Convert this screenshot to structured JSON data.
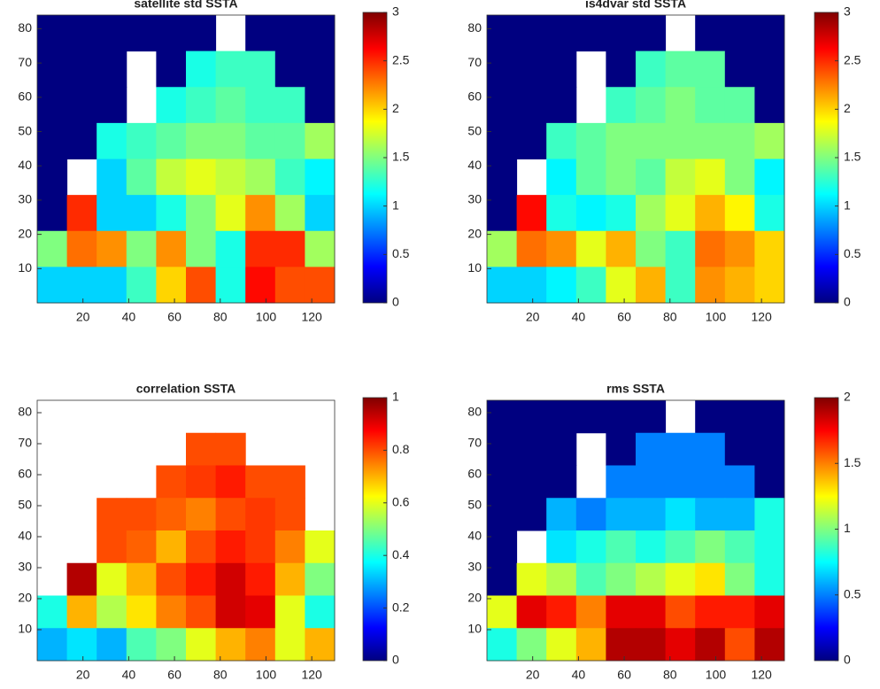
{
  "chart_data": [
    {
      "type": "heatmap",
      "title": "satellite std SSTA",
      "colormap": "jet",
      "x": [
        6.5,
        19.5,
        32.5,
        45.5,
        58.5,
        71.5,
        84.5,
        97.5,
        110.5,
        123.5
      ],
      "y": [
        78.75,
        68.25,
        57.75,
        47.25,
        36.75,
        26.25,
        15.75,
        5.25
      ],
      "z": [
        [
          0,
          0,
          0,
          0,
          0,
          0,
          null,
          0,
          0,
          0
        ],
        [
          0,
          0,
          0,
          null,
          0,
          1.2,
          1.3,
          1.3,
          0,
          0
        ],
        [
          0,
          0,
          0,
          null,
          1.2,
          1.3,
          1.4,
          1.3,
          1.3,
          0
        ],
        [
          0,
          0,
          1.2,
          1.3,
          1.4,
          1.5,
          1.5,
          1.4,
          1.4,
          1.6
        ],
        [
          0,
          null,
          1.0,
          1.4,
          1.7,
          1.8,
          1.7,
          1.6,
          1.3,
          1.1
        ],
        [
          0,
          2.5,
          1.0,
          1.0,
          1.2,
          1.5,
          1.8,
          2.2,
          1.6,
          1.0
        ],
        [
          1.5,
          2.3,
          2.2,
          1.5,
          2.2,
          1.5,
          1.2,
          2.5,
          2.5,
          1.6
        ],
        [
          1.0,
          1.0,
          1.0,
          1.3,
          2.0,
          2.4,
          1.2,
          2.6,
          2.4,
          2.4
        ]
      ],
      "xlim": [
        0,
        130
      ],
      "ylim": [
        0,
        84
      ],
      "xticks": [
        20,
        40,
        60,
        80,
        100,
        120
      ],
      "yticks": [
        10,
        20,
        30,
        40,
        50,
        60,
        70,
        80
      ],
      "clim": [
        0,
        3
      ],
      "cticks": [
        0,
        0.5,
        1,
        1.5,
        2,
        2.5,
        3
      ]
    },
    {
      "type": "heatmap",
      "title": "is4dvar std SSTA",
      "colormap": "jet",
      "x": [
        6.5,
        19.5,
        32.5,
        45.5,
        58.5,
        71.5,
        84.5,
        97.5,
        110.5,
        123.5
      ],
      "y": [
        78.75,
        68.25,
        57.75,
        47.25,
        36.75,
        26.25,
        15.75,
        5.25
      ],
      "z": [
        [
          0,
          0,
          0,
          0,
          0,
          0,
          null,
          0,
          0,
          0
        ],
        [
          0,
          0,
          0,
          null,
          0,
          1.3,
          1.4,
          1.4,
          0,
          0
        ],
        [
          0,
          0,
          0,
          null,
          1.3,
          1.4,
          1.5,
          1.4,
          1.4,
          0
        ],
        [
          0,
          0,
          1.3,
          1.4,
          1.5,
          1.5,
          1.5,
          1.5,
          1.5,
          1.6
        ],
        [
          0,
          null,
          1.1,
          1.4,
          1.5,
          1.4,
          1.7,
          1.8,
          1.5,
          1.1
        ],
        [
          0,
          2.6,
          1.2,
          1.1,
          1.2,
          1.6,
          1.8,
          2.1,
          1.9,
          1.2
        ],
        [
          1.6,
          2.3,
          2.2,
          1.8,
          2.1,
          1.5,
          1.3,
          2.3,
          2.2,
          2.0
        ],
        [
          1.0,
          1.0,
          1.1,
          1.3,
          1.8,
          2.1,
          1.3,
          2.2,
          2.1,
          2.0
        ]
      ],
      "xlim": [
        0,
        130
      ],
      "ylim": [
        0,
        84
      ],
      "xticks": [
        20,
        40,
        60,
        80,
        100,
        120
      ],
      "yticks": [
        10,
        20,
        30,
        40,
        50,
        60,
        70,
        80
      ],
      "clim": [
        0,
        3
      ],
      "cticks": [
        0,
        0.5,
        1,
        1.5,
        2,
        2.5,
        3
      ]
    },
    {
      "type": "heatmap",
      "title": "correlation SSTA",
      "colormap": "jet",
      "x": [
        6.5,
        19.5,
        32.5,
        45.5,
        58.5,
        71.5,
        84.5,
        97.5,
        110.5,
        123.5
      ],
      "y": [
        78.75,
        68.25,
        57.75,
        47.25,
        36.75,
        26.25,
        15.75,
        5.25
      ],
      "z": [
        [
          null,
          null,
          null,
          null,
          null,
          null,
          null,
          null,
          null,
          null
        ],
        [
          null,
          null,
          null,
          null,
          null,
          0.8,
          0.8,
          null,
          null,
          null
        ],
        [
          null,
          null,
          null,
          null,
          0.8,
          0.82,
          0.85,
          0.8,
          0.8,
          null
        ],
        [
          null,
          null,
          0.8,
          0.8,
          0.78,
          0.75,
          0.8,
          0.82,
          0.8,
          null
        ],
        [
          null,
          null,
          0.8,
          0.78,
          0.7,
          0.8,
          0.85,
          0.82,
          0.75,
          0.6
        ],
        [
          null,
          0.95,
          0.6,
          0.7,
          0.8,
          0.85,
          0.92,
          0.85,
          0.7,
          0.5
        ],
        [
          0.4,
          0.7,
          0.55,
          0.65,
          0.75,
          0.8,
          0.92,
          0.9,
          0.6,
          0.4
        ],
        [
          0.3,
          0.35,
          0.3,
          0.45,
          0.5,
          0.6,
          0.7,
          0.75,
          0.6,
          0.7
        ]
      ],
      "xlim": [
        0,
        130
      ],
      "ylim": [
        0,
        84
      ],
      "xticks": [
        20,
        40,
        60,
        80,
        100,
        120
      ],
      "yticks": [
        10,
        20,
        30,
        40,
        50,
        60,
        70,
        80
      ],
      "clim": [
        0,
        1
      ],
      "cticks": [
        0,
        0.2,
        0.4,
        0.6,
        0.8,
        1
      ]
    },
    {
      "type": "heatmap",
      "title": "rms SSTA",
      "colormap": "jet",
      "x": [
        6.5,
        19.5,
        32.5,
        45.5,
        58.5,
        71.5,
        84.5,
        97.5,
        110.5,
        123.5
      ],
      "y": [
        78.75,
        68.25,
        57.75,
        47.25,
        36.75,
        26.25,
        15.75,
        5.25
      ],
      "z": [
        [
          0,
          0,
          0,
          0,
          0,
          0,
          null,
          0,
          0,
          0
        ],
        [
          0,
          0,
          0,
          null,
          0,
          0.5,
          0.5,
          0.5,
          0,
          0
        ],
        [
          0,
          0,
          0,
          null,
          0.5,
          0.5,
          0.5,
          0.5,
          0.5,
          0
        ],
        [
          0,
          0,
          0.6,
          0.5,
          0.6,
          0.6,
          0.7,
          0.6,
          0.6,
          0.8
        ],
        [
          0,
          null,
          0.7,
          0.8,
          0.9,
          0.8,
          0.9,
          1.0,
          0.9,
          0.8
        ],
        [
          0,
          1.2,
          1.1,
          0.9,
          1.0,
          1.1,
          1.2,
          1.3,
          1.0,
          0.8
        ],
        [
          1.2,
          1.8,
          1.7,
          1.5,
          1.8,
          1.8,
          1.6,
          1.7,
          1.7,
          1.8
        ],
        [
          0.8,
          1.0,
          1.2,
          1.4,
          1.9,
          1.9,
          1.8,
          1.9,
          1.6,
          1.9
        ]
      ],
      "xlim": [
        0,
        130
      ],
      "ylim": [
        0,
        84
      ],
      "xticks": [
        20,
        40,
        60,
        80,
        100,
        120
      ],
      "yticks": [
        10,
        20,
        30,
        40,
        50,
        60,
        70,
        80
      ],
      "clim": [
        0,
        2
      ],
      "cticks": [
        0,
        0.5,
        1,
        1.5,
        2
      ]
    }
  ]
}
